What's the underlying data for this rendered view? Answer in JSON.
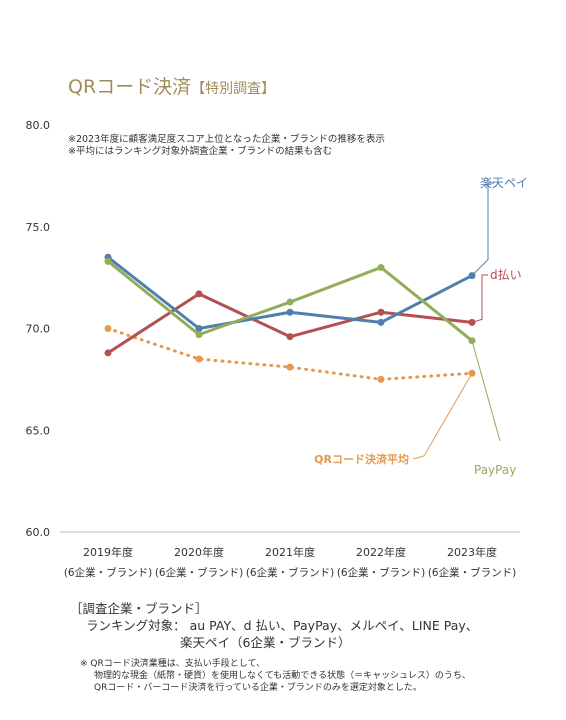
{
  "title": {
    "main": "QRコード決済",
    "sub": "【特別調査】"
  },
  "notes": [
    "※2023年度に顧客満足度スコア上位となった企業・ブランドの推移を表示",
    "※平均にはランキング対象外調査企業・ブランドの結果も含む"
  ],
  "survey": {
    "heading": "［調査企業・ブランド］",
    "label": "ランキング対象：",
    "line1": "au PAY、d 払い、PayPay、メルペイ、LINE Pay、",
    "line2": "楽天ペイ（6企業・ブランド）"
  },
  "footnote": {
    "line1": "※ QRコード決済業種は、支払い手段として、",
    "line2": "物理的な現金（紙幣・硬貨）を使用しなくても活動できる状態（＝キャッシュレス）のうち、",
    "line3": "QRコード・バーコード決済を行っている企業・ブランドのみを選定対象とした。"
  },
  "chart_data": {
    "type": "line",
    "categories": [
      "2019年度",
      "2020年度",
      "2021年度",
      "2022年度",
      "2023年度"
    ],
    "category_sub": "(6企業・ブランド)",
    "ylim": [
      60,
      80
    ],
    "yticks": [
      "60.0",
      "65.0",
      "70.0",
      "75.0",
      "80.0"
    ],
    "series": [
      {
        "name": "楽天ペイ",
        "color": "#4f7faa",
        "dashed": false,
        "values": [
          73.5,
          70.0,
          70.8,
          70.3,
          72.6
        ]
      },
      {
        "name": "d払い",
        "color": "#b54f52",
        "dashed": false,
        "values": [
          68.8,
          71.7,
          69.6,
          70.8,
          70.3
        ]
      },
      {
        "name": "PayPay",
        "color": "#93ad5b",
        "dashed": false,
        "values": [
          73.3,
          69.7,
          71.3,
          73.0,
          69.4
        ]
      },
      {
        "name": "QRコード決済平均",
        "color": "#e39a4f",
        "dashed": true,
        "values": [
          70.0,
          68.5,
          68.1,
          67.5,
          67.8
        ]
      }
    ]
  }
}
